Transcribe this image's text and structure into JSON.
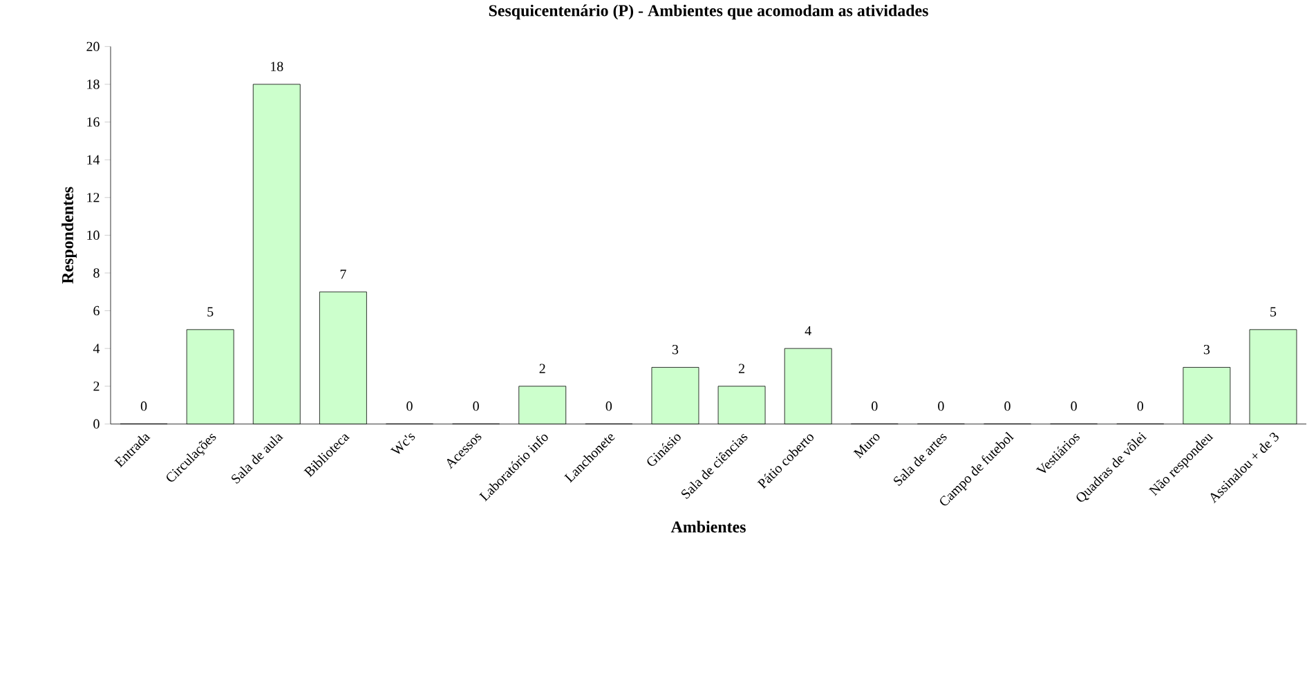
{
  "chart_data": {
    "type": "bar",
    "title": "Sesquicentenário (P) - Ambientes que acomodam as atividades",
    "xlabel": "Ambientes",
    "ylabel": "Respondentes",
    "categories": [
      "Entrada",
      "Circulações",
      "Sala de aula",
      "Biblioteca",
      "Wc's",
      "Acessos",
      "Laboratório info",
      "Lanchonete",
      "Ginásio",
      "Sala de ciências",
      "Pátio coberto",
      "Muro",
      "Sala de artes",
      "Campo de futebol",
      "Vestiários",
      "Quadras de vôlei",
      "Não respondeu",
      "Assinalou + de 3"
    ],
    "values": [
      0,
      5,
      18,
      7,
      0,
      0,
      2,
      0,
      3,
      2,
      4,
      0,
      0,
      0,
      0,
      0,
      3,
      5
    ],
    "color": "#ccffcc",
    "ylim": [
      0,
      20
    ],
    "yticks": [
      0,
      2,
      4,
      6,
      8,
      10,
      12,
      14,
      16,
      18,
      20
    ],
    "grid": false,
    "data_labels": true
  }
}
